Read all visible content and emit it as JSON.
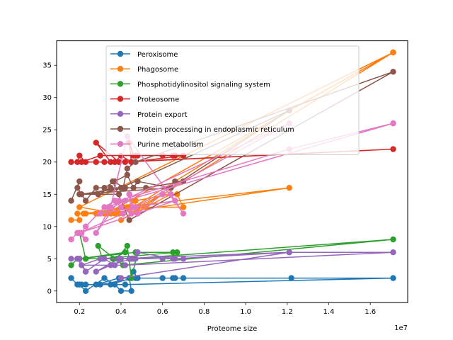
{
  "chart_data": {
    "type": "line",
    "xlabel": "Proteome size",
    "ylabel": "",
    "x_multiplier_label": "1e7",
    "xlim": [
      900000,
      17800000
    ],
    "ylim": [
      -1.8,
      38.8
    ],
    "x_ticks": [
      {
        "value": 2000000,
        "label": "0.2"
      },
      {
        "value": 4000000,
        "label": "0.4"
      },
      {
        "value": 6000000,
        "label": "0.6"
      },
      {
        "value": 8000000,
        "label": "0.8"
      },
      {
        "value": 10000000,
        "label": "1.0"
      },
      {
        "value": 12000000,
        "label": "1.2"
      },
      {
        "value": 14000000,
        "label": "1.4"
      },
      {
        "value": 16000000,
        "label": "1.6"
      }
    ],
    "y_ticks": [
      0,
      5,
      10,
      15,
      20,
      25,
      30,
      35
    ],
    "grid": false,
    "legend_position": "top-center",
    "series": [
      {
        "name": "Peroxisome",
        "color": "#1f77b4",
        "points": [
          [
            1600000,
            2
          ],
          [
            1900000,
            1
          ],
          [
            2300000,
            1
          ],
          [
            2000000,
            1
          ],
          [
            2300000,
            0
          ],
          [
            3200000,
            2
          ],
          [
            3700000,
            1
          ],
          [
            4000000,
            0
          ],
          [
            4500000,
            0
          ],
          [
            4400000,
            2
          ],
          [
            4600000,
            3
          ],
          [
            4800000,
            2
          ],
          [
            6500000,
            2
          ],
          [
            6000000,
            2
          ],
          [
            7000000,
            2
          ],
          [
            4500000,
            2
          ],
          [
            3500000,
            1
          ],
          [
            2800000,
            1
          ],
          [
            3900000,
            2
          ],
          [
            12200000,
            2
          ],
          [
            17100000,
            2
          ],
          [
            4200000,
            1
          ],
          [
            2100000,
            1
          ],
          [
            3000000,
            1
          ],
          [
            4700000,
            2
          ],
          [
            6600000,
            2
          ]
        ]
      },
      {
        "name": "Phagosome",
        "color": "#ff7f0e",
        "points": [
          [
            1600000,
            11
          ],
          [
            2000000,
            11
          ],
          [
            1900000,
            12
          ],
          [
            2300000,
            12
          ],
          [
            2800000,
            12
          ],
          [
            3200000,
            12
          ],
          [
            4300000,
            13
          ],
          [
            4600000,
            14
          ],
          [
            4800000,
            13
          ],
          [
            6000000,
            15
          ],
          [
            6700000,
            15
          ],
          [
            7000000,
            13
          ],
          [
            5200000,
            13
          ],
          [
            3500000,
            12
          ],
          [
            2900000,
            12
          ],
          [
            4100000,
            13
          ],
          [
            12100000,
            16
          ],
          [
            3700000,
            12
          ],
          [
            4700000,
            14
          ],
          [
            6400000,
            15
          ],
          [
            4000000,
            11
          ],
          [
            17100000,
            37
          ],
          [
            3300000,
            12
          ],
          [
            4500000,
            13
          ],
          [
            2200000,
            12
          ],
          [
            4100000,
            12
          ],
          [
            12100000,
            28
          ],
          [
            17100000,
            37
          ],
          [
            2000000,
            13
          ],
          [
            3900000,
            12
          ]
        ]
      },
      {
        "name": "Phosphotidylinositol signaling system",
        "color": "#2ca02c",
        "points": [
          [
            1600000,
            4
          ],
          [
            1900000,
            5
          ],
          [
            2300000,
            5
          ],
          [
            2000000,
            9
          ],
          [
            2300000,
            5
          ],
          [
            3800000,
            5
          ],
          [
            4300000,
            7
          ],
          [
            4500000,
            2
          ],
          [
            4800000,
            6
          ],
          [
            6500000,
            6
          ],
          [
            6700000,
            6
          ],
          [
            3100000,
            5
          ],
          [
            2900000,
            7
          ],
          [
            4100000,
            4
          ],
          [
            17100000,
            8
          ],
          [
            4400000,
            5
          ],
          [
            3600000,
            5
          ],
          [
            4200000,
            6
          ],
          [
            2000000,
            5
          ],
          [
            4700000,
            6
          ]
        ]
      },
      {
        "name": "Proteosome",
        "color": "#d62728",
        "points": [
          [
            1600000,
            20
          ],
          [
            1900000,
            20
          ],
          [
            2000000,
            21
          ],
          [
            2300000,
            20
          ],
          [
            2800000,
            20
          ],
          [
            3200000,
            20
          ],
          [
            3700000,
            20
          ],
          [
            4000000,
            21
          ],
          [
            4500000,
            20
          ],
          [
            4400000,
            23
          ],
          [
            4600000,
            21
          ],
          [
            4800000,
            21
          ],
          [
            6500000,
            21
          ],
          [
            6000000,
            21
          ],
          [
            7000000,
            21
          ],
          [
            4500000,
            20
          ],
          [
            3500000,
            20
          ],
          [
            2800000,
            23
          ],
          [
            3900000,
            20
          ],
          [
            17100000,
            22
          ],
          [
            4200000,
            20
          ],
          [
            2100000,
            20
          ],
          [
            3000000,
            21
          ],
          [
            4700000,
            21
          ],
          [
            6600000,
            21
          ]
        ]
      },
      {
        "name": "Protein export",
        "color": "#9467bd",
        "points": [
          [
            1600000,
            5
          ],
          [
            1900000,
            5
          ],
          [
            2300000,
            3
          ],
          [
            2000000,
            5
          ],
          [
            2300000,
            3
          ],
          [
            3200000,
            5
          ],
          [
            3700000,
            4
          ],
          [
            4000000,
            5
          ],
          [
            4500000,
            5
          ],
          [
            4400000,
            5
          ],
          [
            4600000,
            5
          ],
          [
            4800000,
            6
          ],
          [
            6500000,
            5
          ],
          [
            6000000,
            5
          ],
          [
            7000000,
            5
          ],
          [
            4500000,
            5
          ],
          [
            3500000,
            4
          ],
          [
            2800000,
            3
          ],
          [
            3900000,
            5
          ],
          [
            12100000,
            6
          ],
          [
            17100000,
            6
          ],
          [
            4200000,
            4
          ],
          [
            2100000,
            4
          ],
          [
            3000000,
            5
          ],
          [
            4700000,
            5
          ],
          [
            6600000,
            5
          ],
          [
            12100000,
            6
          ],
          [
            4000000,
            2
          ]
        ]
      },
      {
        "name": "Protein processing in endoplasmic reticulum",
        "color": "#8c564b",
        "points": [
          [
            1600000,
            14
          ],
          [
            2000000,
            17
          ],
          [
            1900000,
            16
          ],
          [
            2300000,
            14
          ],
          [
            2800000,
            16
          ],
          [
            3200000,
            16
          ],
          [
            3700000,
            17
          ],
          [
            4300000,
            18
          ],
          [
            4600000,
            16
          ],
          [
            4800000,
            17
          ],
          [
            6400000,
            16
          ],
          [
            6600000,
            17
          ],
          [
            7000000,
            17
          ],
          [
            5200000,
            16
          ],
          [
            3500000,
            16
          ],
          [
            2900000,
            15
          ],
          [
            4100000,
            16
          ],
          [
            4300000,
            19
          ],
          [
            4700000,
            20
          ],
          [
            17100000,
            34
          ],
          [
            4400000,
            11
          ],
          [
            3600000,
            17
          ],
          [
            4200000,
            16
          ],
          [
            2100000,
            15
          ],
          [
            4000000,
            16
          ],
          [
            12100000,
            28
          ],
          [
            6400000,
            16
          ],
          [
            2000000,
            15
          ],
          [
            3900000,
            15
          ]
        ]
      },
      {
        "name": "Purine metabolism",
        "color": "#e377c2",
        "points": [
          [
            1600000,
            8
          ],
          [
            1900000,
            9
          ],
          [
            2300000,
            8
          ],
          [
            2100000,
            9
          ],
          [
            2300000,
            10
          ],
          [
            3200000,
            13
          ],
          [
            3700000,
            14
          ],
          [
            4000000,
            13
          ],
          [
            4500000,
            12
          ],
          [
            4400000,
            15
          ],
          [
            4600000,
            13
          ],
          [
            4800000,
            12
          ],
          [
            6000000,
            15
          ],
          [
            6400000,
            15
          ],
          [
            7000000,
            12
          ],
          [
            4300000,
            24
          ],
          [
            3500000,
            13
          ],
          [
            2800000,
            9
          ],
          [
            3900000,
            14
          ],
          [
            12100000,
            22
          ],
          [
            17100000,
            26
          ],
          [
            4200000,
            14
          ],
          [
            3000000,
            12
          ],
          [
            4700000,
            13
          ],
          [
            6600000,
            14
          ],
          [
            2000000,
            9
          ],
          [
            4100000,
            12
          ],
          [
            12100000,
            26
          ],
          [
            3400000,
            13
          ]
        ]
      }
    ]
  }
}
